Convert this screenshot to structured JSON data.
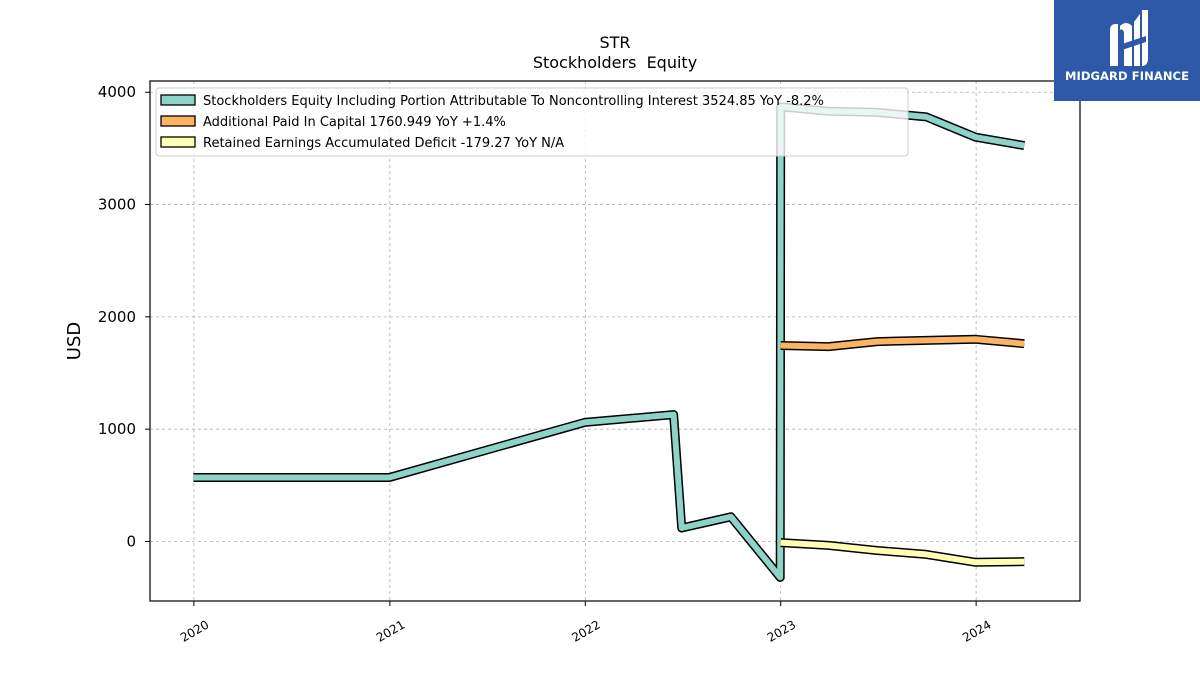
{
  "logo": {
    "text": "MIDGARD FINANCE",
    "bg_color": "#2e59a8"
  },
  "chart_data": {
    "type": "line",
    "title": "STR",
    "subtitle": "Stockholders  Equity",
    "ylabel": "USD",
    "xlabel": "",
    "ylim": [
      -530,
      4100
    ],
    "xlim": [
      "2019-10-11",
      "2024-07-13"
    ],
    "yticks": [
      0,
      1000,
      2000,
      3000,
      4000
    ],
    "xticks": [
      {
        "date": "2020-01-01",
        "label": "2020"
      },
      {
        "date": "2021-01-01",
        "label": "2021"
      },
      {
        "date": "2022-01-01",
        "label": "2022"
      },
      {
        "date": "2023-01-01",
        "label": "2023"
      },
      {
        "date": "2024-01-01",
        "label": "2024"
      }
    ],
    "grid": true,
    "legend_position": "top-left",
    "series": [
      {
        "name": "Stockholders Equity Including Portion Attributable To Noncontrolling Interest  3524.85 YoY -8.2%",
        "color": "#8dd3c7",
        "points": [
          {
            "x": "2019-12-31",
            "y": 570
          },
          {
            "x": "2020-12-31",
            "y": 570
          },
          {
            "x": "2021-12-31",
            "y": 1060
          },
          {
            "x": "2022-06-15",
            "y": 1130
          },
          {
            "x": "2022-06-30",
            "y": 120
          },
          {
            "x": "2022-09-30",
            "y": 220
          },
          {
            "x": "2022-12-31",
            "y": -320
          },
          {
            "x": "2023-01-01",
            "y": 3870
          },
          {
            "x": "2023-03-31",
            "y": 3830
          },
          {
            "x": "2023-06-30",
            "y": 3820
          },
          {
            "x": "2023-09-30",
            "y": 3780
          },
          {
            "x": "2023-12-31",
            "y": 3600
          },
          {
            "x": "2024-03-31",
            "y": 3525
          }
        ]
      },
      {
        "name": "Additional Paid In Capital  1760.949 YoY +1.4%",
        "color": "#fdb462",
        "points": [
          {
            "x": "2023-01-01",
            "y": 1745
          },
          {
            "x": "2023-03-31",
            "y": 1735
          },
          {
            "x": "2023-06-30",
            "y": 1780
          },
          {
            "x": "2023-09-30",
            "y": 1790
          },
          {
            "x": "2023-12-31",
            "y": 1800
          },
          {
            "x": "2024-03-31",
            "y": 1761
          }
        ]
      },
      {
        "name": "Retained Earnings Accumulated Deficit  -179.27 YoY N/A",
        "color": "#ffffb3",
        "points": [
          {
            "x": "2023-01-01",
            "y": -10
          },
          {
            "x": "2023-03-31",
            "y": -35
          },
          {
            "x": "2023-06-30",
            "y": -80
          },
          {
            "x": "2023-09-30",
            "y": -115
          },
          {
            "x": "2023-12-31",
            "y": -185
          },
          {
            "x": "2024-03-31",
            "y": -179
          }
        ]
      }
    ]
  }
}
